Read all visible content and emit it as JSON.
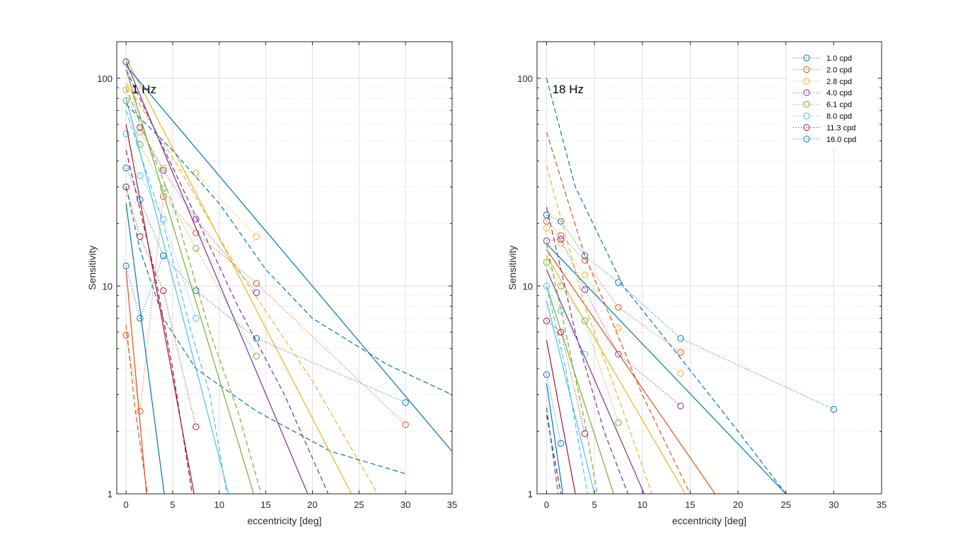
{
  "chart_data": [
    {
      "type": "scatter",
      "title": "1 Hz",
      "xlabel": "eccentricity [deg]",
      "ylabel": "Sensitivity",
      "xlim": [
        -1,
        35
      ],
      "ylim": [
        1,
        150
      ],
      "yscale": "log",
      "grid": true,
      "xticks": [
        0,
        5,
        10,
        15,
        20,
        25,
        30,
        35
      ],
      "yticks": [
        1,
        10,
        100
      ],
      "legend": null,
      "series": [
        {
          "name": "1.0 cpd",
          "color": "#0072BD",
          "points": [
            [
              0,
              12.5
            ],
            [
              1.5,
              7.0
            ],
            [
              4,
              14.0
            ],
            [
              7.5,
              9.5
            ],
            [
              14,
              5.6
            ],
            [
              30,
              2.75
            ]
          ],
          "fit_solid": [
            [
              0,
              25
            ],
            [
              4.1,
              1
            ]
          ],
          "fit_dashed": [
            [
              0,
              30
            ],
            [
              1.5,
              15
            ],
            [
              4,
              7
            ],
            [
              7.5,
              4
            ],
            [
              14,
              2.5
            ],
            [
              22,
              1.6
            ],
            [
              30,
              1.25
            ]
          ]
        },
        {
          "name": "2.0 cpd",
          "color": "#D95319",
          "points": [
            [
              0,
              5.8
            ],
            [
              1.5,
              2.5
            ],
            [
              4,
              27
            ],
            [
              7.5,
              18
            ],
            [
              14,
              10.3
            ],
            [
              30,
              2.15
            ]
          ],
          "fit_solid": [
            [
              0,
              12
            ],
            [
              2.2,
              1
            ]
          ],
          "fit_dashed": [
            [
              0,
              6.5
            ],
            [
              1,
              2.5
            ],
            [
              2.3,
              1
            ]
          ]
        },
        {
          "name": "2.8 cpd",
          "color": "#EDB120",
          "points": [
            [
              0,
              88
            ],
            [
              1.5,
              55
            ],
            [
              4,
              37
            ],
            [
              7.5,
              35
            ],
            [
              14,
              17.3
            ]
          ],
          "fit_solid": [
            [
              0,
              125
            ],
            [
              24.2,
              1
            ]
          ],
          "fit_dashed": [
            [
              0,
              95
            ],
            [
              6,
              35
            ],
            [
              12,
              12
            ],
            [
              20,
              3.5
            ],
            [
              27,
              1
            ]
          ]
        },
        {
          "name": "4.0 cpd",
          "color": "#7E2F8E",
          "points": [
            [
              0,
              120
            ],
            [
              1.5,
              58
            ],
            [
              4,
              36
            ],
            [
              7.5,
              21
            ],
            [
              14,
              9.3
            ]
          ],
          "fit_solid": [
            [
              0,
              120
            ],
            [
              19.5,
              1
            ]
          ],
          "fit_dashed": [
            [
              0,
              110
            ],
            [
              6,
              30
            ],
            [
              12,
              8
            ],
            [
              17,
              3
            ],
            [
              21.7,
              1
            ]
          ]
        },
        {
          "name": "6.1 cpd",
          "color": "#77AC30",
          "points": [
            [
              0,
              78
            ],
            [
              1.5,
              48
            ],
            [
              4,
              29.5
            ],
            [
              7.5,
              15.2
            ],
            [
              14,
              4.6
            ]
          ],
          "fit_solid": [
            [
              0,
              110
            ],
            [
              13.7,
              1
            ]
          ],
          "fit_dashed": [
            [
              0,
              90
            ],
            [
              5,
              25
            ],
            [
              9,
              6
            ],
            [
              12,
              2.5
            ],
            [
              14.5,
              1
            ]
          ]
        },
        {
          "name": "8.0 cpd",
          "color": "#4DBEEE",
          "points": [
            [
              0,
              54
            ],
            [
              1.5,
              34
            ],
            [
              4,
              21
            ],
            [
              7.5,
              7.0
            ]
          ],
          "fit_solid": [
            [
              0,
              80
            ],
            [
              11,
              1
            ]
          ],
          "fit_dashed": [
            [
              0,
              70
            ],
            [
              4,
              20
            ],
            [
              7,
              6
            ],
            [
              9,
              3
            ],
            [
              10.8,
              1
            ]
          ]
        },
        {
          "name": "11.3 cpd",
          "color": "#A2142F",
          "points": [
            [
              0,
              30
            ],
            [
              1.5,
              17.3
            ],
            [
              4,
              9.5
            ],
            [
              7.5,
              2.1
            ]
          ],
          "fit_solid": [
            [
              0,
              60
            ],
            [
              7.3,
              1
            ]
          ],
          "fit_dashed": [
            [
              0,
              45
            ],
            [
              3,
              12
            ],
            [
              5,
              4
            ],
            [
              7.1,
              1
            ]
          ]
        },
        {
          "name": "16.0 cpd",
          "color": "#0072BD",
          "points": [
            [
              0,
              37
            ],
            [
              1.5,
              26
            ],
            [
              4,
              14
            ]
          ],
          "fit_solid": [
            [
              0,
              115
            ],
            [
              35,
              1.6
            ]
          ],
          "fit_dashed": [
            [
              0,
              75
            ],
            [
              5,
              45
            ],
            [
              10,
              25
            ],
            [
              15,
              12
            ],
            [
              20,
              7
            ],
            [
              28,
              4.2
            ],
            [
              35,
              3
            ]
          ]
        }
      ]
    },
    {
      "type": "scatter",
      "title": "18 Hz",
      "xlabel": "eccentricity [deg]",
      "ylabel": "Sensitivity",
      "xlim": [
        -1,
        35
      ],
      "ylim": [
        1,
        150
      ],
      "yscale": "log",
      "grid": true,
      "xticks": [
        0,
        5,
        10,
        15,
        20,
        25,
        30,
        35
      ],
      "yticks": [
        1,
        10,
        100
      ],
      "legend": "top-right",
      "series": [
        {
          "name": "1.0 cpd",
          "color": "#0072BD",
          "points": [
            [
              0,
              22
            ],
            [
              1.5,
              20.5
            ],
            [
              4,
              14
            ],
            [
              7.5,
              10.4
            ],
            [
              14,
              5.6
            ],
            [
              30,
              2.55
            ]
          ],
          "fit_solid": [
            [
              0,
              16
            ],
            [
              25,
              1
            ]
          ],
          "fit_dashed": [
            [
              0,
              100
            ],
            [
              3,
              30
            ],
            [
              8,
              10
            ],
            [
              14,
              4.5
            ],
            [
              20,
              2
            ],
            [
              25,
              1
            ]
          ]
        },
        {
          "name": "2.0 cpd",
          "color": "#D95319",
          "points": [
            [
              0,
              20.5
            ],
            [
              1.5,
              17.5
            ],
            [
              4,
              13.3
            ],
            [
              7.5,
              7.9
            ],
            [
              14,
              4.8
            ]
          ],
          "fit_solid": [
            [
              0,
              15
            ],
            [
              17.6,
              1
            ]
          ],
          "fit_dashed": [
            [
              0,
              55
            ],
            [
              4,
              14
            ],
            [
              10,
              3
            ],
            [
              15,
              1
            ]
          ]
        },
        {
          "name": "2.8 cpd",
          "color": "#EDB120",
          "points": [
            [
              0,
              19
            ],
            [
              1.5,
              16
            ],
            [
              4,
              11.3
            ],
            [
              7.5,
              6.3
            ],
            [
              14,
              3.8
            ]
          ],
          "fit_solid": [
            [
              0,
              14
            ],
            [
              14.5,
              1
            ]
          ],
          "fit_dashed": [
            [
              0,
              38
            ],
            [
              4,
              8
            ],
            [
              8,
              2.5
            ],
            [
              11,
              1
            ]
          ]
        },
        {
          "name": "4.0 cpd",
          "color": "#7E2F8E",
          "points": [
            [
              0,
              16.5
            ],
            [
              1.5,
              16.8
            ],
            [
              4,
              9.6
            ],
            [
              7.5,
              4.7
            ],
            [
              14,
              2.65
            ]
          ],
          "fit_solid": [
            [
              0,
              12
            ],
            [
              10.2,
              1
            ]
          ],
          "fit_dashed": [
            [
              0,
              24
            ],
            [
              3,
              6
            ],
            [
              6,
              2
            ],
            [
              8.5,
              1
            ]
          ]
        },
        {
          "name": "6.1 cpd",
          "color": "#77AC30",
          "points": [
            [
              0,
              13
            ],
            [
              1.5,
              10
            ],
            [
              4,
              6.8
            ],
            [
              7.5,
              2.2
            ]
          ],
          "fit_solid": [
            [
              0,
              10
            ],
            [
              7,
              1
            ]
          ],
          "fit_dashed": [
            [
              0,
              16
            ],
            [
              2,
              6
            ],
            [
              4,
              2.2
            ],
            [
              5.3,
              1
            ]
          ]
        },
        {
          "name": "8.0 cpd",
          "color": "#4DBEEE",
          "points": [
            [
              0,
              10
            ],
            [
              1.5,
              7.6
            ],
            [
              4,
              4.7
            ]
          ],
          "fit_solid": [
            [
              0,
              8.5
            ],
            [
              5,
              1
            ]
          ],
          "fit_dashed": [
            [
              0,
              10
            ],
            [
              2,
              4
            ],
            [
              3.5,
              1.6
            ],
            [
              4.3,
              1
            ]
          ]
        },
        {
          "name": "11.3 cpd",
          "color": "#A2142F",
          "points": [
            [
              0,
              6.8
            ],
            [
              1.5,
              6.0
            ],
            [
              4,
              1.95
            ]
          ],
          "fit_solid": [
            [
              0,
              5.5
            ],
            [
              3,
              1
            ]
          ],
          "fit_dashed": [
            [
              0,
              2.4
            ],
            [
              1.5,
              1
            ]
          ]
        },
        {
          "name": "16.0 cpd",
          "color": "#0072BD",
          "points": [
            [
              0,
              3.75
            ],
            [
              1.5,
              1.75
            ]
          ],
          "fit_solid": [
            [
              0,
              3.4
            ],
            [
              1.7,
              1
            ]
          ],
          "fit_dashed": [
            [
              0,
              2.6
            ],
            [
              1.2,
              1
            ]
          ]
        }
      ]
    }
  ]
}
